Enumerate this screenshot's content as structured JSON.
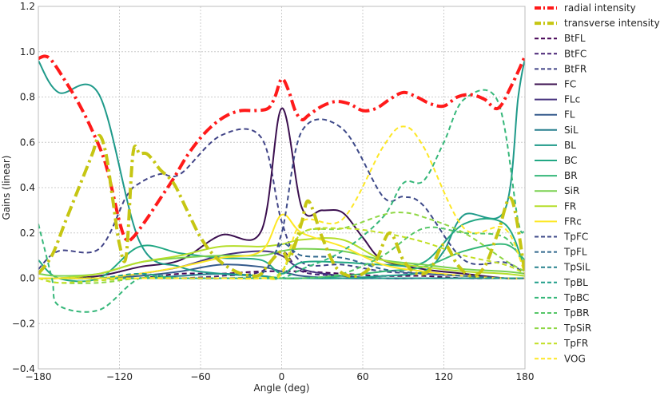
{
  "chart_data": {
    "type": "line",
    "title": "",
    "xlabel": "Angle (deg)",
    "ylabel": "Gains (linear)",
    "xlim": [
      -180,
      180
    ],
    "ylim": [
      -0.4,
      1.2
    ],
    "xticks": [
      -180,
      -120,
      -60,
      0,
      60,
      120,
      180
    ],
    "xtick_labels": [
      "−180",
      "−120",
      "−60",
      "0",
      "60",
      "120",
      "180"
    ],
    "yticks": [
      -0.4,
      -0.2,
      0.0,
      0.2,
      0.4,
      0.6,
      0.8,
      1.0,
      1.2
    ],
    "ytick_labels": [
      "−0.4",
      "−0.2",
      "0.0",
      "0.2",
      "0.4",
      "0.6",
      "0.8",
      "1.0",
      "1.2"
    ],
    "grid": true,
    "legend_position": "right-outside",
    "series": [
      {
        "name": "radial intensity",
        "color": "#ff1a1a",
        "dash": "dashdot",
        "width": 4,
        "x": [
          -180,
          -175,
          -170,
          -160,
          -150,
          -140,
          -130,
          -120,
          -115,
          -110,
          -100,
          -90,
          -80,
          -70,
          -60,
          -50,
          -40,
          -30,
          -20,
          -10,
          -5,
          0,
          5,
          10,
          15,
          20,
          30,
          40,
          50,
          60,
          70,
          80,
          90,
          100,
          110,
          120,
          130,
          140,
          150,
          160,
          170,
          180
        ],
        "y": [
          0.97,
          0.98,
          0.96,
          0.87,
          0.77,
          0.65,
          0.5,
          0.25,
          0.17,
          0.18,
          0.26,
          0.35,
          0.44,
          0.54,
          0.62,
          0.68,
          0.72,
          0.74,
          0.74,
          0.75,
          0.8,
          0.88,
          0.83,
          0.74,
          0.7,
          0.72,
          0.76,
          0.78,
          0.77,
          0.74,
          0.75,
          0.79,
          0.82,
          0.8,
          0.77,
          0.76,
          0.8,
          0.81,
          0.79,
          0.75,
          0.85,
          0.98
        ]
      },
      {
        "name": "transverse intensity",
        "color": "#c6c613",
        "dash": "dashdot",
        "width": 4,
        "x": [
          -180,
          -170,
          -160,
          -150,
          -140,
          -135,
          -130,
          -125,
          -120,
          -115,
          -110,
          -105,
          -100,
          -95,
          -90,
          -80,
          -70,
          -60,
          -50,
          -40,
          -30,
          -20,
          -15,
          -10,
          0,
          5,
          10,
          15,
          20,
          30,
          40,
          50,
          60,
          70,
          80,
          90,
          100,
          110,
          120,
          130,
          140,
          150,
          160,
          170,
          180
        ],
        "y": [
          0.02,
          0.1,
          0.25,
          0.4,
          0.55,
          0.63,
          0.55,
          0.35,
          0.15,
          0.1,
          0.55,
          0.55,
          0.55,
          0.52,
          0.48,
          0.42,
          0.3,
          0.18,
          0.1,
          0.05,
          0.02,
          0.01,
          0.02,
          0.06,
          0.12,
          0.08,
          0.15,
          0.25,
          0.34,
          0.18,
          0.05,
          0.01,
          0.02,
          0.08,
          0.2,
          0.08,
          0.02,
          0.04,
          0.15,
          0.06,
          0.01,
          0.05,
          0.2,
          0.35,
          0.02
        ]
      },
      {
        "name": "BtFL",
        "color": "#440154",
        "dash": "dashed",
        "width": 2,
        "x": [
          -180,
          -165,
          -135,
          -105,
          -75,
          -45,
          -15,
          15,
          45,
          75,
          105,
          135,
          165,
          180
        ],
        "y": [
          0.0,
          0.0,
          0.0,
          0.0,
          0.02,
          0.02,
          0.03,
          0.03,
          0.02,
          0.01,
          0.01,
          0.0,
          0.0,
          0.0
        ]
      },
      {
        "name": "BtFC",
        "color": "#482475",
        "dash": "dashed",
        "width": 2,
        "x": [
          -180,
          -165,
          -135,
          -105,
          -75,
          -45,
          -15,
          0,
          15,
          45,
          75,
          105,
          135,
          165,
          180
        ],
        "y": [
          0.0,
          0.0,
          0.0,
          0.0,
          0.0,
          0.01,
          0.03,
          0.12,
          0.03,
          0.01,
          0.0,
          0.0,
          0.0,
          0.0,
          0.0
        ]
      },
      {
        "name": "BtFR",
        "color": "#414487",
        "dash": "dashed",
        "width": 2,
        "x": [
          -180,
          -165,
          -135,
          -115,
          -105,
          -90,
          -75,
          -45,
          -15,
          0,
          15,
          45,
          75,
          105,
          135,
          165,
          180
        ],
        "y": [
          0.04,
          0.12,
          0.13,
          0.36,
          0.42,
          0.46,
          0.46,
          0.63,
          0.62,
          0.25,
          0.07,
          0.06,
          0.03,
          0.02,
          0.01,
          0.0,
          0.0
        ]
      },
      {
        "name": "FC",
        "color": "#3b0f4f",
        "dash": "solid",
        "width": 2,
        "x": [
          -180,
          -165,
          -135,
          -105,
          -75,
          -45,
          -15,
          0,
          15,
          30,
          45,
          60,
          75,
          105,
          135,
          165,
          180
        ],
        "y": [
          0.0,
          0.0,
          0.01,
          0.05,
          0.08,
          0.19,
          0.21,
          0.75,
          0.31,
          0.3,
          0.29,
          0.18,
          0.08,
          0.04,
          0.02,
          0.0,
          0.0
        ]
      },
      {
        "name": "FLc",
        "color": "#46327e",
        "dash": "solid",
        "width": 2,
        "x": [
          -180,
          -165,
          -135,
          -105,
          -75,
          -45,
          -15,
          0,
          15,
          45,
          75,
          105,
          135,
          165,
          180
        ],
        "y": [
          0.0,
          0.0,
          0.0,
          0.02,
          0.05,
          0.1,
          0.12,
          0.1,
          0.04,
          0.01,
          0.0,
          0.0,
          0.0,
          0.0,
          0.0
        ]
      },
      {
        "name": "FL",
        "color": "#365c8d",
        "dash": "solid",
        "width": 2,
        "x": [
          -180,
          -165,
          -135,
          -105,
          -75,
          -45,
          -15,
          0,
          15,
          45,
          75,
          105,
          135,
          165,
          180
        ],
        "y": [
          0.0,
          0.0,
          0.0,
          0.01,
          0.03,
          0.06,
          0.05,
          0.03,
          0.01,
          0.0,
          0.0,
          0.0,
          0.0,
          0.0,
          0.0
        ]
      },
      {
        "name": "SiL",
        "color": "#277f8e",
        "dash": "solid",
        "width": 2,
        "x": [
          -180,
          -165,
          -135,
          -105,
          -75,
          -45,
          -15,
          0,
          15,
          45,
          75,
          105,
          135,
          165,
          180
        ],
        "y": [
          0.0,
          0.0,
          0.0,
          0.0,
          0.01,
          0.02,
          0.01,
          0.0,
          0.0,
          0.0,
          0.0,
          0.0,
          0.0,
          0.0,
          0.0
        ]
      },
      {
        "name": "BL",
        "color": "#1f9a8a",
        "dash": "solid",
        "width": 2,
        "x": [
          -180,
          -165,
          -135,
          -105,
          -75,
          -45,
          -15,
          0,
          15,
          45,
          75,
          105,
          120,
          135,
          165,
          175,
          180
        ],
        "y": [
          0.96,
          0.82,
          0.81,
          0.16,
          0.05,
          0.02,
          0.01,
          0.0,
          0.0,
          0.0,
          0.01,
          0.03,
          0.12,
          0.28,
          0.3,
          0.8,
          0.97
        ]
      },
      {
        "name": "BC",
        "color": "#22a884",
        "dash": "solid",
        "width": 2,
        "x": [
          -180,
          -165,
          -135,
          -105,
          -75,
          -45,
          -15,
          0,
          15,
          45,
          75,
          105,
          135,
          165,
          180
        ],
        "y": [
          0.08,
          0.0,
          0.0,
          0.14,
          0.11,
          0.09,
          0.08,
          0.02,
          0.07,
          0.07,
          0.06,
          0.07,
          0.24,
          0.24,
          0.04
        ]
      },
      {
        "name": "BR",
        "color": "#35b779",
        "dash": "solid",
        "width": 2,
        "x": [
          -180,
          -165,
          -135,
          -105,
          -75,
          -45,
          -15,
          0,
          15,
          45,
          75,
          105,
          135,
          165,
          180
        ],
        "y": [
          0.0,
          0.0,
          0.0,
          0.0,
          0.0,
          0.0,
          0.0,
          0.0,
          0.0,
          0.01,
          0.03,
          0.05,
          0.12,
          0.15,
          0.08
        ]
      },
      {
        "name": "SiR",
        "color": "#7ad151",
        "dash": "solid",
        "width": 2,
        "x": [
          -180,
          -165,
          -135,
          -105,
          -75,
          -45,
          -15,
          0,
          15,
          45,
          75,
          105,
          135,
          165,
          180
        ],
        "y": [
          0.02,
          0.01,
          0.02,
          0.07,
          0.09,
          0.1,
          0.1,
          0.12,
          0.13,
          0.12,
          0.08,
          0.06,
          0.04,
          0.03,
          0.02
        ]
      },
      {
        "name": "FR",
        "color": "#b5de2b",
        "dash": "solid",
        "width": 2,
        "x": [
          -180,
          -165,
          -135,
          -105,
          -75,
          -45,
          -15,
          0,
          15,
          45,
          75,
          105,
          135,
          165,
          180
        ],
        "y": [
          0.0,
          0.0,
          0.02,
          0.07,
          0.1,
          0.14,
          0.14,
          0.15,
          0.17,
          0.17,
          0.08,
          0.05,
          0.03,
          0.02,
          0.01
        ]
      },
      {
        "name": "FRc",
        "color": "#fde725",
        "dash": "solid",
        "width": 2,
        "x": [
          -180,
          -165,
          -135,
          -105,
          -75,
          -45,
          -15,
          0,
          15,
          45,
          75,
          105,
          135,
          165,
          180
        ],
        "y": [
          0.0,
          0.0,
          0.0,
          0.02,
          0.05,
          0.09,
          0.12,
          0.28,
          0.2,
          0.14,
          0.06,
          0.03,
          0.01,
          0.0,
          0.0
        ]
      },
      {
        "name": "TpFC",
        "color": "#3e4a89",
        "dash": "dashed",
        "width": 2,
        "x": [
          -180,
          -165,
          -135,
          -105,
          -75,
          -45,
          -15,
          0,
          15,
          45,
          75,
          90,
          105,
          135,
          165,
          180
        ],
        "y": [
          0.0,
          0.0,
          0.0,
          0.0,
          0.0,
          0.0,
          0.02,
          0.2,
          0.65,
          0.66,
          0.36,
          0.36,
          0.32,
          0.08,
          0.07,
          0.02
        ]
      },
      {
        "name": "TpFL",
        "color": "#31688e",
        "dash": "dashed",
        "width": 2,
        "x": [
          -180,
          -165,
          -135,
          -105,
          -75,
          -45,
          -15,
          0,
          15,
          45,
          75,
          105,
          135,
          165,
          180
        ],
        "y": [
          0.0,
          0.0,
          0.0,
          0.0,
          0.0,
          0.0,
          0.02,
          0.15,
          0.1,
          0.09,
          0.04,
          0.02,
          0.01,
          0.0,
          0.0
        ]
      },
      {
        "name": "TpSiL",
        "color": "#26828e",
        "dash": "dashed",
        "width": 2,
        "x": [
          -180,
          -165,
          -135,
          -105,
          -75,
          -45,
          -15,
          0,
          15,
          45,
          75,
          105,
          135,
          165,
          180
        ],
        "y": [
          0.0,
          0.0,
          0.0,
          0.0,
          0.0,
          0.0,
          0.0,
          0.0,
          0.0,
          0.0,
          0.0,
          0.0,
          0.0,
          0.0,
          0.0
        ]
      },
      {
        "name": "TpBL",
        "color": "#1f9e89",
        "dash": "dashed",
        "width": 2,
        "x": [
          -180,
          -165,
          -135,
          -105,
          -75,
          -45,
          -15,
          0,
          15,
          45,
          75,
          105,
          135,
          165,
          180
        ],
        "y": [
          0.0,
          0.0,
          0.0,
          0.02,
          0.0,
          0.0,
          0.0,
          0.0,
          0.0,
          0.0,
          0.0,
          0.0,
          0.0,
          0.0,
          0.0
        ]
      },
      {
        "name": "TpBC",
        "color": "#35b779",
        "dash": "dashed",
        "width": 2,
        "x": [
          -180,
          -170,
          -165,
          -135,
          -105,
          -75,
          -45,
          -15,
          0,
          15,
          45,
          75,
          90,
          105,
          120,
          135,
          160,
          175,
          180
        ],
        "y": [
          0.24,
          0.0,
          -0.12,
          -0.14,
          0.0,
          0.0,
          0.0,
          0.0,
          0.0,
          0.04,
          0.12,
          0.27,
          0.42,
          0.43,
          0.6,
          0.79,
          0.78,
          0.25,
          0.22
        ]
      },
      {
        "name": "TpBR",
        "color": "#55c667",
        "dash": "dashed",
        "width": 2,
        "x": [
          -180,
          -165,
          -135,
          -105,
          -75,
          -45,
          -15,
          0,
          15,
          45,
          75,
          105,
          135,
          165,
          180
        ],
        "y": [
          0.0,
          0.0,
          0.0,
          0.0,
          0.0,
          0.0,
          0.0,
          0.0,
          0.0,
          0.02,
          0.1,
          0.22,
          0.2,
          0.18,
          0.05
        ]
      },
      {
        "name": "TpSiR",
        "color": "#8fd744",
        "dash": "dashed",
        "width": 2,
        "x": [
          -180,
          -165,
          -135,
          -105,
          -75,
          -45,
          -15,
          0,
          15,
          45,
          75,
          90,
          105,
          135,
          165,
          180
        ],
        "y": [
          0.0,
          -0.02,
          -0.02,
          0.0,
          0.0,
          0.0,
          0.0,
          0.02,
          0.2,
          0.22,
          0.28,
          0.29,
          0.27,
          0.2,
          0.08,
          0.03
        ]
      },
      {
        "name": "TpFR",
        "color": "#c2df23",
        "dash": "dashed",
        "width": 2,
        "x": [
          -180,
          -165,
          -135,
          -105,
          -75,
          -45,
          -15,
          0,
          15,
          45,
          75,
          105,
          135,
          165,
          180
        ],
        "y": [
          0.0,
          -0.02,
          -0.01,
          0.0,
          0.0,
          0.0,
          0.0,
          0.03,
          0.2,
          0.22,
          0.2,
          0.16,
          0.1,
          0.06,
          0.02
        ]
      },
      {
        "name": "VOG",
        "color": "#fde725",
        "dash": "dashed",
        "width": 2,
        "x": [
          -180,
          -165,
          -135,
          -105,
          -75,
          -45,
          -15,
          0,
          15,
          45,
          75,
          90,
          105,
          135,
          165,
          180
        ],
        "y": [
          0.0,
          0.0,
          0.0,
          0.0,
          0.0,
          0.0,
          0.0,
          0.02,
          0.25,
          0.26,
          0.58,
          0.67,
          0.58,
          0.22,
          0.22,
          0.02
        ]
      }
    ]
  }
}
